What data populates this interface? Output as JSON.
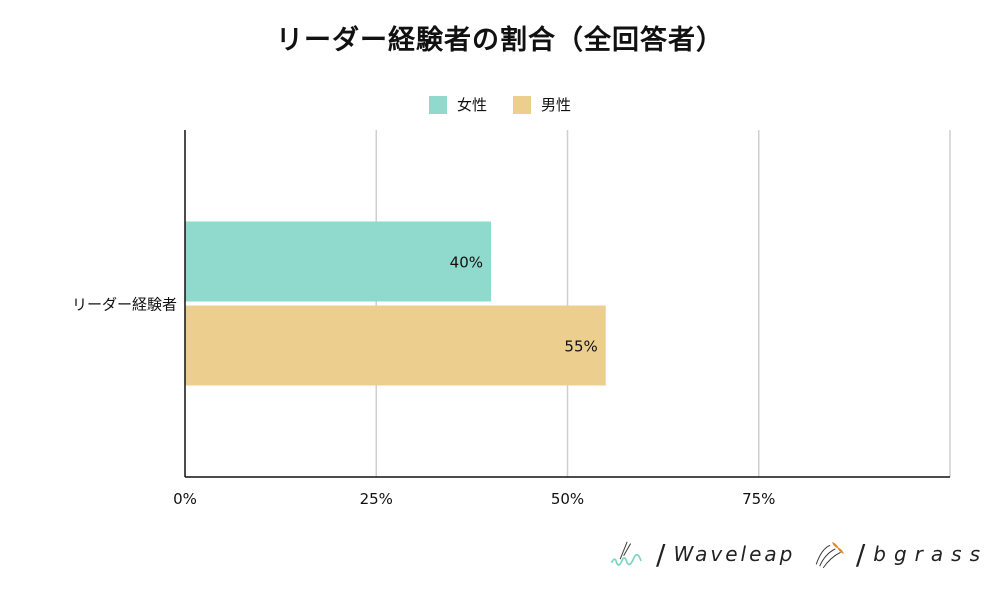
{
  "chart_data": {
    "type": "bar",
    "orientation": "horizontal",
    "title": "リーダー経験者の割合（全回答者）",
    "categories": [
      "リーダー経験者"
    ],
    "series": [
      {
        "name": "女性",
        "values": [
          40
        ],
        "color": "#8fdacc",
        "label": "40%"
      },
      {
        "name": "男性",
        "values": [
          55
        ],
        "color": "#eccf8f",
        "label": "55%"
      }
    ],
    "xlim": [
      0,
      100
    ],
    "xticks": [
      "0%",
      "25%",
      "50%",
      "75%"
    ],
    "grid": true,
    "legend_position": "top-center"
  },
  "logos": {
    "waveleap": "Waveleap",
    "bgrass": "bgrass"
  }
}
